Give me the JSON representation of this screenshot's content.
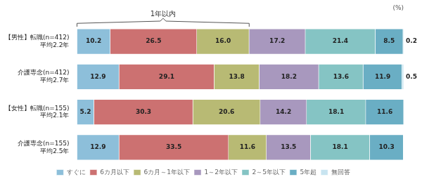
{
  "chart_data": {
    "type": "bar",
    "orientation": "horizontal",
    "stacked": true,
    "categories": [
      [
        "【男性】転職(n=412)",
        "平均2.2年"
      ],
      [
        "介護専念(n=412)",
        "平均2.7年"
      ],
      [
        "【女性】転職(n=155)",
        "平均2.1年"
      ],
      [
        "介護専念(n=155)",
        "平均2.5年"
      ]
    ],
    "series": [
      {
        "name": "すぐに",
        "color": "#8dbfda",
        "values": [
          10.2,
          12.9,
          5.2,
          12.9
        ],
        "value_labels": [
          "10.2",
          "12.9",
          "5.2",
          "12.9"
        ]
      },
      {
        "name": "6カ月以下",
        "color": "#cc7171",
        "values": [
          26.5,
          29.1,
          30.3,
          33.5
        ],
        "value_labels": [
          "26.5",
          "29.1",
          "30.3",
          "33.5"
        ]
      },
      {
        "name": "6カ月～1年以下",
        "color": "#b8ba74",
        "values": [
          16.0,
          13.8,
          20.6,
          11.6
        ],
        "value_labels": [
          "16.0",
          "13.8",
          "20.6",
          "11.6"
        ]
      },
      {
        "name": "1～2年以下",
        "color": "#a898be",
        "values": [
          17.2,
          18.2,
          14.2,
          13.5
        ],
        "value_labels": [
          "17.2",
          "18.2",
          "14.2",
          "13.5"
        ]
      },
      {
        "name": "2～5年以下",
        "color": "#85c4c4",
        "values": [
          21.4,
          13.6,
          18.1,
          18.1
        ],
        "value_labels": [
          "21.4",
          "13.6",
          "18.1",
          "18.1"
        ]
      },
      {
        "name": "5年超",
        "color": "#6aaec4",
        "values": [
          8.5,
          11.9,
          11.6,
          10.3
        ],
        "value_labels": [
          "8.5",
          "11.9",
          "11.6",
          "10.3"
        ]
      },
      {
        "name": "無回答",
        "color": "#c8e4f0",
        "values": [
          0.2,
          0.5,
          0.0,
          0.0
        ],
        "value_labels": [
          "0.2",
          "0.5",
          null,
          null
        ]
      }
    ],
    "annotations": [
      {
        "text": "1年以内",
        "series": [
          "すぐに",
          "6カ月以下",
          "6カ月～1年以下"
        ]
      },
      {
        "text": "(%)"
      }
    ],
    "xlim": [
      0,
      100
    ],
    "tick_labels": "y",
    "grid": false,
    "data_labels": true,
    "legend": "bottom"
  }
}
